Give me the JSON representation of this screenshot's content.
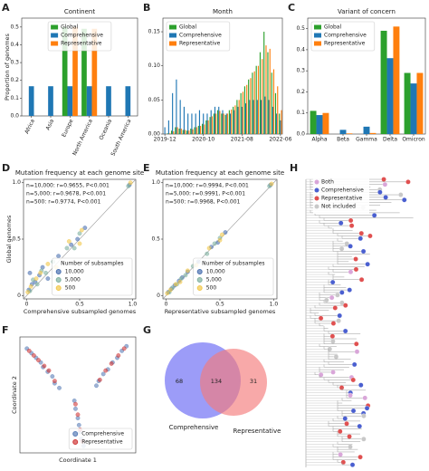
{
  "chart_data": [
    {
      "panel": "A",
      "type": "bar",
      "title": "Continent",
      "ylabel": "Proportion of genomes",
      "categories": [
        "Africa",
        "Asia",
        "Europe",
        "North America",
        "Oceania",
        "South America"
      ],
      "series": [
        {
          "name": "Global",
          "color": "#2ca02c",
          "values": [
            0,
            0,
            0.5,
            0.49,
            0,
            0
          ]
        },
        {
          "name": "Comprehensive",
          "color": "#1f77b4",
          "values": [
            0.167,
            0.167,
            0.167,
            0.167,
            0.167,
            0.167
          ]
        },
        {
          "name": "Representative",
          "color": "#ff7f0e",
          "values": [
            0,
            0,
            0.5,
            0.49,
            0,
            0
          ]
        }
      ],
      "ylim": [
        0,
        0.55
      ],
      "yticks": [
        {
          "value": 0,
          "label": "0.0"
        },
        0.1,
        0.2,
        0.3,
        0.4,
        0.5
      ],
      "legend": "upper center"
    },
    {
      "panel": "B",
      "type": "bar",
      "title": "Month",
      "categories": [
        "2019-12",
        null,
        null,
        null,
        null,
        null,
        null,
        null,
        null,
        null,
        "2020-10",
        null,
        null,
        null,
        null,
        null,
        null,
        null,
        null,
        null,
        "2021-08",
        null,
        null,
        null,
        null,
        null,
        null,
        null,
        null,
        null,
        "2022-06"
      ],
      "series": [
        {
          "name": "Global",
          "color": "#2ca02c",
          "values": [
            0,
            0.001,
            0.005,
            0.01,
            0.008,
            0.006,
            0.005,
            0.008,
            0.01,
            0.012,
            0.015,
            0.02,
            0.025,
            0.03,
            0.035,
            0.03,
            0.028,
            0.035,
            0.04,
            0.05,
            0.06,
            0.07,
            0.08,
            0.09,
            0.1,
            0.12,
            0.15,
            0.12,
            0.09,
            0.06,
            0.03
          ]
        },
        {
          "name": "Comprehensive",
          "color": "#1f77b4",
          "values": [
            0.01,
            0.02,
            0.06,
            0.08,
            0.05,
            0.04,
            0.03,
            0.03,
            0.03,
            0.035,
            0.03,
            0.03,
            0.035,
            0.04,
            0.04,
            0.035,
            0.03,
            0.03,
            0.035,
            0.04,
            0.04,
            0.045,
            0.05,
            0.05,
            0.05,
            0.05,
            0.055,
            0.05,
            0.04,
            0.03,
            0.02
          ]
        },
        {
          "name": "Representative",
          "color": "#ff7f0e",
          "values": [
            0,
            0.001,
            0.004,
            0.01,
            0.008,
            0.006,
            0.005,
            0.007,
            0.01,
            0.012,
            0.014,
            0.02,
            0.026,
            0.03,
            0.034,
            0.03,
            0.03,
            0.036,
            0.042,
            0.05,
            0.062,
            0.072,
            0.082,
            0.092,
            0.1,
            0.11,
            0.13,
            0.125,
            0.095,
            0.07,
            0.035
          ]
        }
      ],
      "ylim": [
        0,
        0.17
      ],
      "yticks": [
        {
          "value": 0,
          "label": "0.00"
        },
        0.05,
        {
          "value": 0.1,
          "label": "0.10"
        },
        0.15
      ],
      "legend": "upper left"
    },
    {
      "panel": "C",
      "type": "bar",
      "title": "Variant of concern",
      "categories": [
        "Alpha",
        "Beta",
        "Gamma",
        "Delta",
        "Omicron"
      ],
      "series": [
        {
          "name": "Global",
          "color": "#2ca02c",
          "values": [
            0.11,
            0,
            0,
            0.49,
            0.29
          ]
        },
        {
          "name": "Comprehensive",
          "color": "#1f77b4",
          "values": [
            0.09,
            0.02,
            0.035,
            0.36,
            0.24
          ]
        },
        {
          "name": "Representative",
          "color": "#ff7f0e",
          "values": [
            0.1,
            0.003,
            0.005,
            0.51,
            0.29
          ]
        }
      ],
      "ylim": [
        0,
        0.55
      ],
      "yticks": [
        {
          "value": 0,
          "label": "0.0"
        },
        0.1,
        0.2,
        0.3,
        0.4,
        0.5
      ],
      "legend": "upper left"
    },
    {
      "panel": "D",
      "type": "scatter",
      "title": "Mutation frequency at each genome site",
      "xlabel": "Comprehensive subsampled genomes",
      "ylabel": "Global genomes",
      "annotations": [
        "n=10,000: r=0.9655, P<0.001",
        "n=5,000: r=0.9678, P<0.001",
        "n=500: r=0.9774, P<0.001"
      ],
      "series": [
        {
          "name": "10,000",
          "color": "#4c72b0",
          "x": [
            0.02,
            0.05,
            0.08,
            0.12,
            0.15,
            0.2,
            0.3,
            0.42,
            0.48,
            0.55,
            0.97,
            0.03
          ],
          "y": [
            0.05,
            0.1,
            0.12,
            0.18,
            0.25,
            0.15,
            0.35,
            0.45,
            0.5,
            0.6,
            0.98,
            0.2
          ]
        },
        {
          "name": "5,000",
          "color": "#7fb0a0",
          "x": [
            0.03,
            0.06,
            0.1,
            0.14,
            0.18,
            0.25,
            0.38,
            0.45,
            0.5,
            0.96
          ],
          "y": [
            0.04,
            0.14,
            0.1,
            0.22,
            0.2,
            0.3,
            0.42,
            0.42,
            0.55,
            0.97
          ]
        },
        {
          "name": "500",
          "color": "#f2c84b",
          "x": [
            0.01,
            0.04,
            0.09,
            0.13,
            0.2,
            0.28,
            0.4,
            0.5,
            0.52,
            0.98
          ],
          "y": [
            0.03,
            0.08,
            0.15,
            0.2,
            0.28,
            0.25,
            0.48,
            0.46,
            0.58,
            1.0
          ]
        }
      ],
      "xlim": [
        -0.03,
        1.03
      ],
      "ylim": [
        -0.03,
        1.03
      ],
      "xticks": [
        0,
        0.5,
        {
          "value": 1,
          "label": "1.0"
        }
      ],
      "yticks": [
        0,
        0.5,
        {
          "value": 1,
          "label": "1.0"
        }
      ],
      "identity_line": true,
      "legend": "lower right",
      "legend_title": "Number of subsamples"
    },
    {
      "panel": "E",
      "type": "scatter",
      "title": "Mutation frequency at each genome site",
      "xlabel": "Representative subsampled genomes",
      "annotations": [
        "n=10,000: r=0.9994, P<0.001",
        "n=5,000: r=0.9991, P<0.001",
        "n=500: r=0.9968, P<0.001"
      ],
      "series": [
        {
          "name": "10,000",
          "color": "#4c72b0",
          "x": [
            0.02,
            0.05,
            0.08,
            0.12,
            0.15,
            0.2,
            0.3,
            0.42,
            0.48,
            0.55,
            0.97
          ],
          "y": [
            0.03,
            0.06,
            0.09,
            0.13,
            0.16,
            0.21,
            0.3,
            0.43,
            0.47,
            0.56,
            0.98
          ]
        },
        {
          "name": "5,000",
          "color": "#7fb0a0",
          "x": [
            0.03,
            0.06,
            0.1,
            0.14,
            0.18,
            0.25,
            0.38,
            0.45,
            0.5,
            0.96
          ],
          "y": [
            0.03,
            0.07,
            0.1,
            0.15,
            0.18,
            0.26,
            0.37,
            0.46,
            0.51,
            0.97
          ]
        },
        {
          "name": "500",
          "color": "#f2c84b",
          "x": [
            0.01,
            0.04,
            0.09,
            0.13,
            0.2,
            0.28,
            0.4,
            0.5,
            0.52,
            0.98
          ],
          "y": [
            0.02,
            0.05,
            0.1,
            0.12,
            0.22,
            0.27,
            0.42,
            0.49,
            0.54,
            0.99
          ]
        }
      ],
      "xlim": [
        -0.03,
        1.03
      ],
      "ylim": [
        -0.03,
        1.03
      ],
      "xticks": [
        0,
        0.5,
        {
          "value": 1,
          "label": "1.0"
        }
      ],
      "yticks": [
        0,
        0.5,
        {
          "value": 1,
          "label": "1.0"
        }
      ],
      "identity_line": true,
      "legend": "lower right",
      "legend_title": "Number of subsamples"
    },
    {
      "panel": "F",
      "type": "scatter",
      "xlabel": "Coordinate 1",
      "ylabel": "Coordinate 2",
      "series": [
        {
          "name": "Comprehensive",
          "color": "#5b7fb8",
          "x": [
            0.06,
            0.1,
            0.14,
            0.18,
            0.2,
            0.24,
            0.28,
            0.3,
            0.34,
            0.92,
            0.88,
            0.84,
            0.8,
            0.76,
            0.72,
            0.68,
            0.66,
            0.47,
            0.48,
            0.5,
            0.51,
            0.52,
            0.53,
            0.55
          ],
          "y": [
            0.9,
            0.86,
            0.82,
            0.78,
            0.74,
            0.7,
            0.66,
            0.6,
            0.56,
            0.92,
            0.88,
            0.82,
            0.78,
            0.72,
            0.68,
            0.62,
            0.58,
            0.45,
            0.38,
            0.3,
            0.24,
            0.18,
            0.12,
            0.06
          ]
        },
        {
          "name": "Representative",
          "color": "#d03a3a",
          "x": [
            0.08,
            0.12,
            0.16,
            0.21,
            0.25,
            0.3,
            0.9,
            0.85,
            0.79,
            0.74,
            0.69,
            0.48,
            0.5,
            0.52,
            0.54
          ],
          "y": [
            0.88,
            0.84,
            0.8,
            0.75,
            0.71,
            0.62,
            0.9,
            0.84,
            0.77,
            0.71,
            0.63,
            0.42,
            0.33,
            0.2,
            0.1
          ]
        }
      ],
      "xlim": [
        0,
        1
      ],
      "ylim": [
        0,
        1
      ],
      "legend": "lower right"
    },
    {
      "panel": "G",
      "type": "venn",
      "sets": [
        "Comprehensive",
        "Representative"
      ],
      "colors": [
        "#7b7bf5",
        "#f57b7b"
      ],
      "values": [
        68,
        134,
        31
      ]
    },
    {
      "panel": "H",
      "type": "tree",
      "legend": [
        {
          "name": "Both",
          "color": "#d9a6d9"
        },
        {
          "name": "Comprehensive",
          "color": "#4a5fd0"
        },
        {
          "name": "Representative",
          "color": "#e05050"
        },
        {
          "name": "Not included",
          "color": "#c8c8c8"
        }
      ]
    }
  ]
}
